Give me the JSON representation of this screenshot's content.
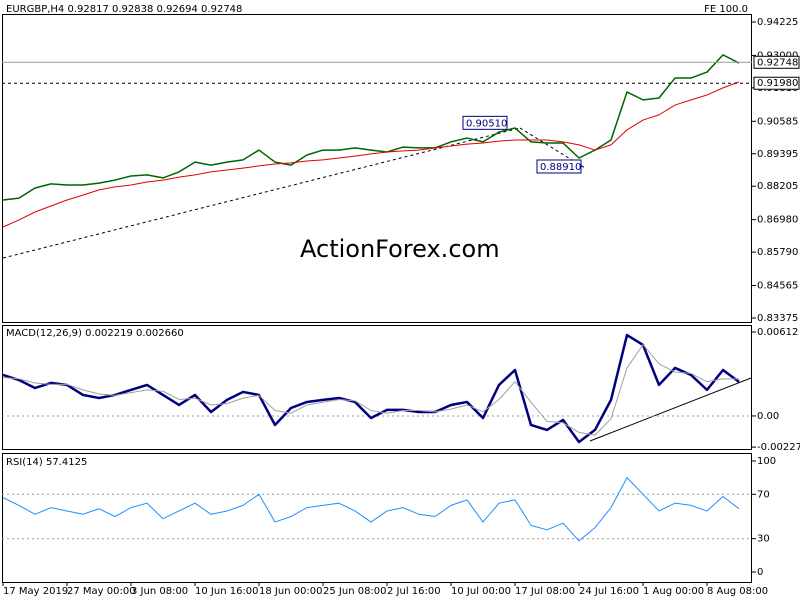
{
  "chart_data": [
    {
      "type": "line",
      "title": "EURGBP,H4  0.92817 0.92838 0.92694 0.92748",
      "annotation": "FE 100.0",
      "watermark": "ActionForex.com",
      "categories": [
        "17 May 2019",
        null,
        null,
        null,
        "27 May 00:00",
        null,
        null,
        null,
        "3 Jun 08:00",
        null,
        null,
        null,
        "10 Jun 16:00",
        null,
        null,
        null,
        "18 Jun 00:00",
        null,
        null,
        null,
        "25 Jun 08:00",
        null,
        null,
        null,
        "2 Jul 16:00",
        null,
        null,
        null,
        "10 Jul 00:00",
        null,
        null,
        null,
        "17 Jul 08:00",
        null,
        null,
        null,
        "24 Jul 16:00",
        null,
        null,
        null,
        "1 Aug 00:00",
        null,
        null,
        null,
        "8 Aug 08:00",
        null,
        null
      ],
      "ylim": [
        0.83228,
        0.94518
      ],
      "yticks": [
        0.94225,
        {
          "value": 0.93,
          "label": "0.93000"
        },
        {
          "value": 0.9181,
          "label": "0.91810"
        },
        0.90585,
        0.89395,
        0.88205,
        {
          "value": 0.8698,
          "label": "0.86980"
        },
        {
          "value": 0.8579,
          "label": "0.85790"
        },
        0.84565,
        0.83375
      ],
      "grid": false,
      "series": [
        {
          "color": "#006400",
          "values": [
            0.877,
            0.8777,
            0.8814,
            0.8829,
            0.8825,
            0.8825,
            0.8832,
            0.8843,
            0.8858,
            0.8862,
            0.8851,
            0.8873,
            0.8909,
            0.8898,
            0.8909,
            0.8917,
            0.8953,
            0.8909,
            0.8898,
            0.8935,
            0.8953,
            0.8953,
            0.8961,
            0.8953,
            0.8946,
            0.8964,
            0.8961,
            0.8961,
            0.8983,
            0.8997,
            0.8983,
            0.9019,
            0.9034,
            0.8983,
            0.8979,
            0.8979,
            0.8924,
            0.8953,
            0.899,
            0.9166,
            0.9137,
            0.9144,
            0.9217,
            0.9217,
            0.9239,
            0.9302,
            0.9272
          ]
        },
        {
          "color": "#e00000",
          "values": [
            0.8671,
            0.8697,
            0.8726,
            0.8748,
            0.877,
            0.8788,
            0.8807,
            0.8818,
            0.8825,
            0.8836,
            0.8843,
            0.8854,
            0.8862,
            0.8873,
            0.888,
            0.8887,
            0.8895,
            0.8902,
            0.8906,
            0.8913,
            0.8917,
            0.8924,
            0.8931,
            0.8939,
            0.8946,
            0.895,
            0.8953,
            0.8961,
            0.8968,
            0.8975,
            0.8979,
            0.8986,
            0.899,
            0.899,
            0.899,
            0.8983,
            0.8972,
            0.8953,
            0.8972,
            0.9027,
            0.9063,
            0.9082,
            0.9118,
            0.9137,
            0.9155,
            0.9181,
            0.9203
          ]
        }
      ],
      "price_lines": [
        0.92748,
        {
          "value": 0.9198,
          "label": "0.91980"
        }
      ],
      "annotations": [
        {
          "value": 0.9051,
          "label": "0.90510"
        },
        {
          "value": 0.8891,
          "label": "0.88910"
        }
      ]
    },
    {
      "type": "line",
      "title": "MACD(12,26,9) 0.002219 0.002660",
      "ylim": [
        -0.00241,
        0.00663
      ],
      "yticks": [
        0.00612,
        {
          "value": 0,
          "label": "0.00"
        },
        -0.002273
      ],
      "grid": "dashed",
      "series": [
        {
          "color": "#000080",
          "values": [
            0.00299,
            0.00262,
            0.00204,
            0.00241,
            0.00226,
            0.00153,
            0.00131,
            0.00153,
            0.0019,
            0.00226,
            0.00153,
            0.0008,
            0.00153,
            0.00029,
            0.00117,
            0.00175,
            0.00153,
            -0.00066,
            0.00058,
            0.00102,
            0.00117,
            0.00131,
            0.00102,
            -0.00015,
            0.00044,
            0.00044,
            0.00029,
            0.00029,
            0.0008,
            0.00102,
            -0.00015,
            0.00226,
            0.00335,
            -0.00066,
            -0.00102,
            -0.00029,
            -0.0019,
            -0.00102,
            0.00117,
            0.0059,
            0.00518,
            0.00226,
            0.0035,
            0.00299,
            0.0019,
            0.00335,
            0.00248
          ]
        },
        {
          "color": "#a0a0a0",
          "values": [
            0.0028,
            0.0027,
            0.0024,
            0.0023,
            0.0023,
            0.0019,
            0.0016,
            0.0015,
            0.0017,
            0.0019,
            0.0018,
            0.0012,
            0.0013,
            0.0008,
            0.0009,
            0.0013,
            0.0015,
            0.0004,
            0.0002,
            0.0008,
            0.001,
            0.0012,
            0.0011,
            0.0004,
            0.0002,
            0.0004,
            0.0004,
            0.0003,
            0.0005,
            0.0008,
            0.0003,
            0.0012,
            0.0025,
            0.001,
            -0.0004,
            -0.0005,
            -0.0012,
            -0.0014,
            -0.0002,
            0.0035,
            0.0052,
            0.0038,
            0.0032,
            0.0031,
            0.0025,
            0.0027,
            0.0027
          ]
        }
      ]
    },
    {
      "type": "line",
      "title": "RSI(14) 57.4125",
      "ylim": [
        -9,
        107.2
      ],
      "yticks": [
        100,
        70,
        30,
        0
      ],
      "grid": "dashed",
      "series": [
        {
          "color": "#1e90ff",
          "values": [
            67,
            60,
            52,
            58,
            55,
            52,
            57,
            50,
            58,
            62,
            48,
            55,
            62,
            52,
            55,
            60,
            70,
            45,
            50,
            58,
            60,
            62,
            55,
            45,
            55,
            58,
            52,
            50,
            60,
            65,
            45,
            62,
            65,
            42,
            38,
            44,
            28,
            40,
            58,
            85,
            70,
            55,
            62,
            60,
            55,
            68,
            57
          ]
        }
      ]
    }
  ]
}
